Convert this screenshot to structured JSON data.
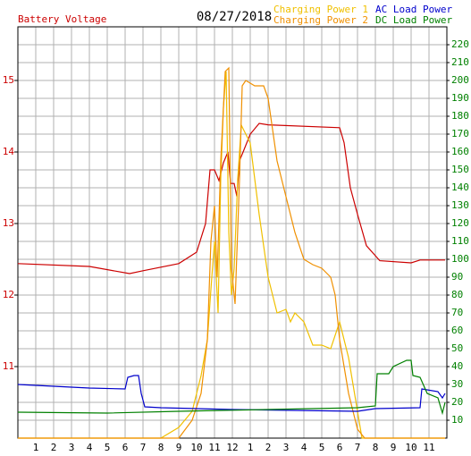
{
  "chart_data": {
    "type": "line",
    "title": "08/27/2018",
    "xlim": [
      0,
      24
    ],
    "ylim": [
      10,
      15.75
    ],
    "y2lim": [
      0,
      230
    ],
    "grid": true,
    "legend": "top-right",
    "xticks": [
      1,
      2,
      3,
      4,
      5,
      6,
      7,
      8,
      9,
      10,
      11,
      12,
      {
        "value": 13,
        "label": "1"
      },
      {
        "value": 14,
        "label": "2"
      },
      {
        "value": 15,
        "label": "3"
      },
      {
        "value": 16,
        "label": "4"
      },
      {
        "value": 17,
        "label": "5"
      },
      {
        "value": 18,
        "label": "6"
      },
      {
        "value": 19,
        "label": "7"
      },
      {
        "value": 20,
        "label": "8"
      },
      {
        "value": 21,
        "label": "9"
      },
      {
        "value": 22,
        "label": "10"
      },
      {
        "value": 23,
        "label": "11"
      }
    ],
    "yticks": [
      11,
      12,
      13,
      14,
      15
    ],
    "y2ticks": [
      10,
      20,
      30,
      40,
      50,
      60,
      70,
      80,
      90,
      100,
      110,
      120,
      130,
      140,
      150,
      160,
      170,
      180,
      190,
      200,
      210,
      220
    ],
    "series": [
      {
        "name": "Battery Voltage",
        "color": "#cc0000",
        "axis": "y",
        "x": [
          0,
          4,
          6.25,
          7,
          9,
          10,
          10.5,
          10.75,
          11,
          11.25,
          11.5,
          11.75,
          11.9,
          12.1,
          12.25,
          12.4,
          12.6,
          13,
          13.5,
          14,
          18,
          18.25,
          18.6,
          19,
          19.5,
          20.25,
          22,
          22.5,
          23.9
        ],
        "values": [
          12.44,
          12.4,
          12.3,
          12.34,
          12.44,
          12.6,
          13.0,
          13.75,
          13.75,
          13.6,
          13.85,
          14.0,
          13.56,
          13.56,
          13.38,
          13.88,
          14.0,
          14.25,
          14.4,
          14.38,
          14.34,
          14.13,
          13.5,
          13.13,
          12.69,
          12.48,
          12.45,
          12.49,
          12.49
        ]
      },
      {
        "name": "Charging Power 1",
        "color": "#f0c000",
        "axis": "y2",
        "x": [
          0,
          8,
          9,
          9.75,
          10.25,
          10.6,
          10.85,
          11,
          11.2,
          11.35,
          11.5,
          11.65,
          11.8,
          11.95,
          12.1,
          12.3,
          12.5,
          12.75,
          13,
          13.25,
          13.5,
          14,
          14.5,
          15,
          15.25,
          15.5,
          16,
          16.5,
          17,
          17.5,
          18,
          18.5,
          19,
          19.25,
          23.9
        ],
        "values": [
          0,
          0,
          6,
          15,
          35,
          55,
          90,
          110,
          70,
          145,
          185,
          205,
          115,
          80,
          95,
          145,
          175,
          170,
          165,
          145,
          125,
          90,
          70,
          72,
          65,
          70,
          65,
          52,
          52,
          50,
          65,
          45,
          15,
          0,
          0
        ]
      },
      {
        "name": "Charging Power 2",
        "color": "#f09000",
        "axis": "y2",
        "x": [
          0,
          9,
          9.75,
          10.25,
          10.6,
          10.8,
          11,
          11.15,
          11.35,
          11.6,
          11.8,
          11.95,
          12.15,
          12.4,
          12.55,
          12.75,
          13.25,
          13.75,
          14,
          14.5,
          15,
          15.5,
          16,
          16.5,
          17,
          17.5,
          17.75,
          18,
          18.25,
          18.5,
          19,
          19.4,
          23.9
        ],
        "values": [
          0,
          0,
          10,
          25,
          55,
          110,
          130,
          90,
          155,
          205,
          207,
          95,
          75,
          145,
          197,
          200,
          197,
          197,
          190,
          155,
          135,
          115,
          100,
          97,
          95,
          90,
          80,
          55,
          40,
          25,
          5,
          0,
          0
        ]
      },
      {
        "name": "AC Load Power",
        "color": "#0000cc",
        "axis": "y2",
        "x": [
          0,
          2,
          4,
          6,
          6.15,
          6.5,
          6.75,
          6.9,
          7.1,
          8,
          12,
          19,
          20,
          22.5,
          22.6,
          23.5,
          23.75,
          23.9
        ],
        "values": [
          30,
          29,
          28,
          27.5,
          34,
          35,
          35,
          25,
          17.5,
          17,
          16,
          15,
          16.5,
          17,
          27.5,
          26,
          22.5,
          25
        ]
      },
      {
        "name": "DC Load Power",
        "color": "#008000",
        "axis": "y2",
        "x": [
          0,
          5,
          9,
          14,
          19,
          20,
          20.1,
          20.75,
          21,
          21.75,
          22,
          22.1,
          22.5,
          22.9,
          23.5,
          23.75,
          23.9
        ],
        "values": [
          14.5,
          14,
          15,
          16,
          17,
          18,
          36,
          36,
          40,
          43.5,
          43.5,
          35,
          34,
          25,
          22.5,
          14,
          20
        ]
      }
    ]
  }
}
